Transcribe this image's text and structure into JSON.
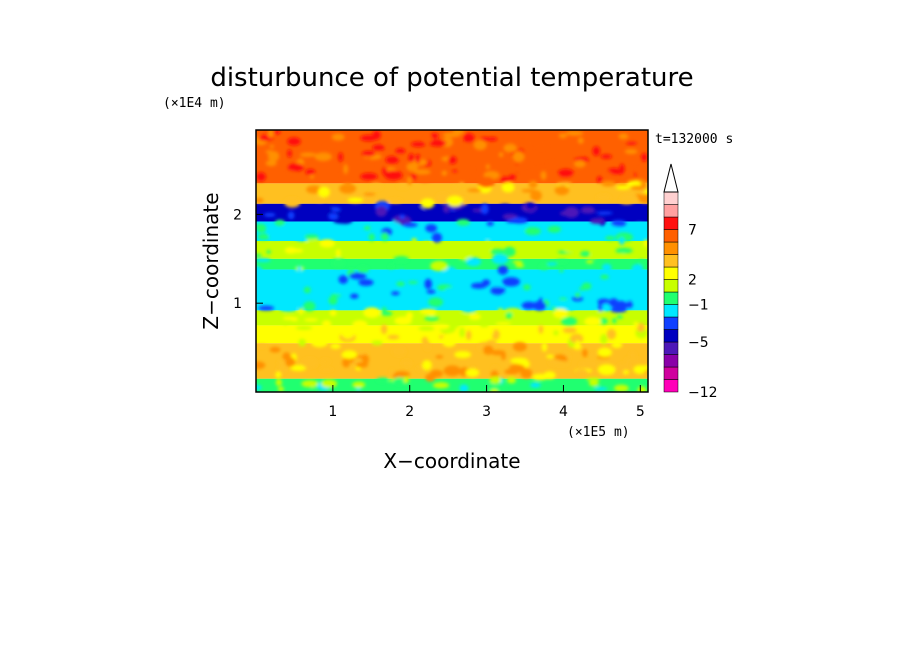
{
  "chart_data": {
    "type": "heatmap",
    "title": "disturbunce of potential temperature",
    "xlabel": "X−coordinate",
    "ylabel": "Z−coordinate",
    "x_unit": "(×1E5 m)",
    "y_unit": "(×1E4 m)",
    "time_label": "t=132000 s",
    "xlim": [
      0,
      5.1
    ],
    "ylim": [
      0,
      2.95
    ],
    "x_ticks": [
      {
        "value": 1,
        "label": "1"
      },
      {
        "value": 2,
        "label": "2"
      },
      {
        "value": 3,
        "label": "3"
      },
      {
        "value": 4,
        "label": "4"
      },
      {
        "value": 5,
        "label": "5"
      }
    ],
    "y_ticks": [
      {
        "value": 1,
        "label": "1"
      },
      {
        "value": 2,
        "label": "2"
      }
    ],
    "colorbar": {
      "colors": [
        "#ff00b8",
        "#d0009e",
        "#8a00a8",
        "#4d18b8",
        "#0000c0",
        "#1040ff",
        "#00e8ff",
        "#20ff70",
        "#c8ff00",
        "#ffff00",
        "#ffc020",
        "#ff9000",
        "#ff6000",
        "#ff1010",
        "#ffa0a0",
        "#ffd0d0"
      ],
      "labels": [
        {
          "index": 0,
          "text": "−12"
        },
        {
          "index": 4,
          "text": "−5"
        },
        {
          "index": 7,
          "text": "−1"
        },
        {
          "index": 9,
          "text": "2"
        },
        {
          "index": 13,
          "text": "7"
        }
      ],
      "extend": "max"
    },
    "bands": [
      {
        "z0": 0.0,
        "z1": 0.15,
        "level": 7
      },
      {
        "z0": 0.15,
        "z1": 0.55,
        "level": 10
      },
      {
        "z0": 0.55,
        "z1": 0.75,
        "level": 9
      },
      {
        "z0": 0.75,
        "z1": 0.92,
        "level": 8
      },
      {
        "z0": 0.92,
        "z1": 1.38,
        "level": 6
      },
      {
        "z0": 1.38,
        "z1": 1.5,
        "level": 7
      },
      {
        "z0": 1.5,
        "z1": 1.7,
        "level": 8
      },
      {
        "z0": 1.7,
        "z1": 1.92,
        "level": 6
      },
      {
        "z0": 1.92,
        "z1": 2.12,
        "level": 4
      },
      {
        "z0": 2.12,
        "z1": 2.35,
        "level": 10
      },
      {
        "z0": 2.35,
        "z1": 2.95,
        "level": 12
      }
    ]
  }
}
